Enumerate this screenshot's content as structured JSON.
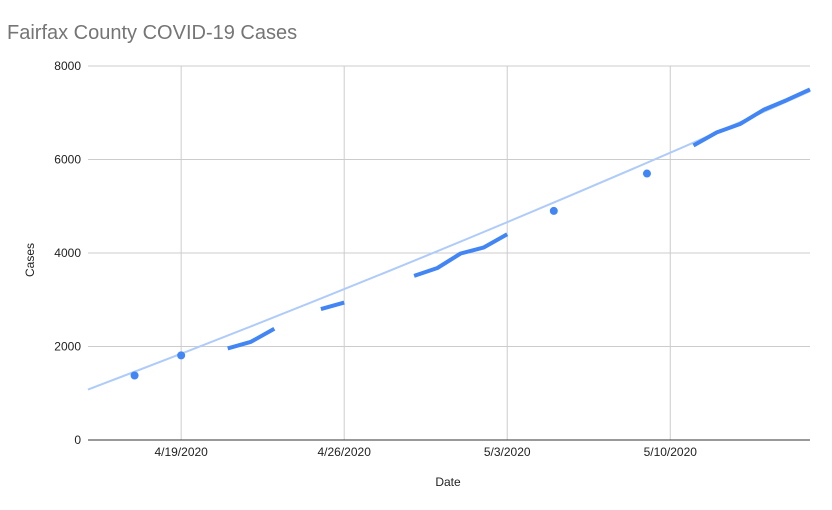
{
  "chart_data": {
    "type": "line",
    "title": "Fairfax County COVID-19 Cases",
    "xlabel": "Date",
    "ylabel": "Cases",
    "x_start": "2020-04-15",
    "x_end": "2020-05-16",
    "xlim": [
      "2020-04-15",
      "2020-05-16"
    ],
    "ylim": [
      0,
      8000
    ],
    "y_ticks": [
      "0",
      "2000",
      "4000",
      "6000",
      "8000"
    ],
    "x_ticks": [
      {
        "label": "4/19/2020",
        "date": "2020-04-19"
      },
      {
        "label": "4/26/2020",
        "date": "2020-04-26"
      },
      {
        "label": "5/3/2020",
        "date": "2020-05-03"
      },
      {
        "label": "5/10/2020",
        "date": "2020-05-10"
      }
    ],
    "grid": true,
    "legend": "none",
    "colors": {
      "series": "#4285f4",
      "trend": "#aecbfa",
      "grid": "#cccccc",
      "axis": "#333333"
    },
    "series": [
      {
        "values": [
          {
            "x": "2020-04-17",
            "y": 1380
          },
          {
            "x": "2020-04-19",
            "y": 1810
          },
          {
            "x": "2020-04-21",
            "y": 1960
          },
          {
            "x": "2020-04-22",
            "y": 2100
          },
          {
            "x": "2020-04-23",
            "y": 2380
          },
          {
            "x": "2020-04-25",
            "y": 2800
          },
          {
            "x": "2020-04-26",
            "y": 2940
          },
          {
            "x": "2020-04-29",
            "y": 3510
          },
          {
            "x": "2020-04-30",
            "y": 3680
          },
          {
            "x": "2020-05-01",
            "y": 3990
          },
          {
            "x": "2020-05-02",
            "y": 4120
          },
          {
            "x": "2020-05-03",
            "y": 4400
          },
          {
            "x": "2020-05-05",
            "y": 4900
          },
          {
            "x": "2020-05-09",
            "y": 5700
          },
          {
            "x": "2020-05-11",
            "y": 6300
          },
          {
            "x": "2020-05-12",
            "y": 6580
          },
          {
            "x": "2020-05-13",
            "y": 6760
          },
          {
            "x": "2020-05-14",
            "y": 7060
          },
          {
            "x": "2020-05-15",
            "y": 7270
          },
          {
            "x": "2020-05-16",
            "y": 7500
          }
        ]
      }
    ],
    "trendline": {
      "type": "polynomial",
      "y_at_start": 1080,
      "y_at_end": 7460
    }
  }
}
